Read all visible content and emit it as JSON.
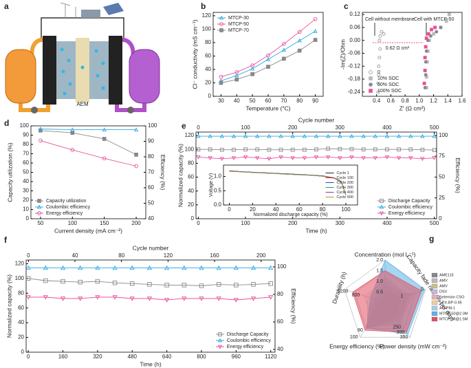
{
  "diagram": {
    "label": "a",
    "membrane": "AEM"
  },
  "chart_data": [
    {
      "label": "b",
      "type": "line",
      "xlabel": "Temperature (°C)",
      "ylabel": "Cl⁻ conductivity (mS cm⁻¹)",
      "x": [
        30,
        40,
        50,
        60,
        70,
        80,
        90
      ],
      "xlim": [
        25,
        95
      ],
      "xticks": [
        30,
        40,
        50,
        60,
        70,
        80,
        90
      ],
      "ylim": [
        0,
        125
      ],
      "yticks": [
        0,
        20,
        40,
        60,
        80,
        100,
        120
      ],
      "legend": "upper left",
      "series": [
        {
          "name": "MTCP-30",
          "color": "#2ea8e0",
          "marker": "triangle",
          "filled": false,
          "values": [
            23,
            31,
            41,
            55,
            69,
            83,
            97
          ]
        },
        {
          "name": "MTCP-50",
          "color": "#e8509a",
          "marker": "circle",
          "filled": false,
          "values": [
            29,
            36,
            46,
            61,
            78,
            96,
            115
          ]
        },
        {
          "name": "MTCP-70",
          "color": "#888888",
          "marker": "square",
          "filled": true,
          "values": [
            20,
            25,
            33,
            44,
            56,
            68,
            84
          ]
        }
      ]
    },
    {
      "label": "c",
      "type": "scatter",
      "xlabel": "Z' (Ω cm²)",
      "ylabel": "-Im(Z)/Ohm",
      "xlim": [
        0.2,
        1.6
      ],
      "xticks": [
        0.4,
        0.6,
        0.8,
        {
          "value": 1,
          "label": "1.0"
        },
        1.2,
        1.4,
        1.6
      ],
      "ylim": [
        -0.26,
        0.13
      ],
      "yticks": [
        0.12,
        0.06,
        {
          "value": 0,
          "label": "0.00"
        },
        -0.06,
        -0.12,
        -0.18,
        -0.24
      ],
      "legend": "lower left",
      "annotations": [
        "Cell without membrane",
        "Cell with MTCP-50",
        "0.62 Ω cm²"
      ],
      "series": [
        {
          "name": "0",
          "color": "#999999",
          "marker": "circle",
          "filled": false,
          "x": [
            0.5,
            0.47,
            0.45,
            0.44,
            0.45,
            0.44,
            0.43,
            0.43,
            0.42,
            0.42
          ],
          "values": [
            0.03,
            0.04,
            0.02,
            0,
            -0.04,
            -0.08,
            -0.12,
            -0.16,
            -0.2,
            -0.24
          ]
        },
        {
          "name": "10% SOC",
          "color": "#bbbbbb",
          "marker": "square",
          "filled": true,
          "x": [
            1.42,
            1.38,
            1.3,
            1.2,
            1.14,
            1.12,
            1.11,
            1.1,
            1.1
          ],
          "values": [
            0.12,
            0.09,
            0.06,
            0.03,
            0,
            -0.05,
            -0.1,
            -0.17,
            -0.22
          ]
        },
        {
          "name": "50% SOC",
          "color": "#888888",
          "marker": "circle",
          "filled": true,
          "x": [
            1.3,
            1.24,
            1.16,
            1.12,
            1.1,
            1.09,
            1.09,
            1.08
          ],
          "values": [
            0.06,
            0.04,
            0.02,
            0,
            -0.05,
            -0.1,
            -0.16,
            -0.22
          ]
        },
        {
          "name": "100% SOC",
          "color": "#e8509a",
          "marker": "square",
          "filled": true,
          "x": [
            1.22,
            1.17,
            1.13,
            1.1,
            1.09,
            1.08,
            1.08,
            1.07
          ],
          "values": [
            0.06,
            0.05,
            0.03,
            0.01,
            -0.03,
            -0.08,
            -0.14,
            -0.2
          ]
        }
      ]
    },
    {
      "label": "d",
      "type": "line",
      "xlabel": "Current density (mA cm⁻²)",
      "ylabel": "Capacity utilization (%)",
      "y2label": "Efficiency (%)",
      "x": [
        50,
        100,
        150,
        200
      ],
      "xlim": [
        35,
        215
      ],
      "xticks": [
        50,
        100,
        150,
        200
      ],
      "ylim": [
        0,
        100
      ],
      "yticks": [
        0,
        10,
        20,
        30,
        40,
        50,
        60,
        70,
        80,
        90,
        100
      ],
      "y2lim": [
        40,
        100
      ],
      "y2ticks": [
        40,
        50,
        60,
        70,
        80,
        90,
        100
      ],
      "legend": "lower left",
      "series": [
        {
          "name": "Capacity utilization",
          "color": "#888888",
          "marker": "square",
          "filled": true,
          "values": [
            95,
            92.5,
            86,
            69
          ]
        },
        {
          "name": "Coulombic efficiency",
          "color": "#2ea8e0",
          "marker": "triangle",
          "filled": false,
          "axis": "y2",
          "values": [
            98,
            97.5,
            97.5,
            97.5
          ]
        },
        {
          "name": "Energy efficiency",
          "color": "#e8509a",
          "marker": "circle",
          "filled": false,
          "axis": "y2",
          "values": [
            90.5,
            84.5,
            79,
            74
          ]
        }
      ]
    },
    {
      "label": "e",
      "type": "line",
      "xlabel": "Time (h)",
      "ylabel": "Normalized capacity (%)",
      "y2label": "Efficiency (%)",
      "x2label": "Cycle number",
      "x": [
        0,
        25,
        50,
        75,
        100,
        125,
        150,
        175,
        200,
        225,
        250,
        275,
        300,
        325,
        350,
        375,
        400,
        425,
        450,
        475,
        500
      ],
      "xlim": [
        -5,
        505
      ],
      "xticks": [
        0,
        100,
        200,
        300,
        400,
        500
      ],
      "x2lim": [
        -5,
        505
      ],
      "x2ticks": [
        0,
        100,
        200,
        300,
        400,
        500
      ],
      "ylim": [
        0,
        125
      ],
      "yticks": [
        0,
        20,
        40,
        60,
        80,
        100,
        120
      ],
      "y2lim": [
        0,
        104
      ],
      "y2ticks": [
        0,
        25,
        50,
        75,
        100
      ],
      "legend": "lower right",
      "series": [
        {
          "name": "Discharge Capacity",
          "color": "#888888",
          "marker": "square",
          "filled": false,
          "values": [
            100,
            100,
            99.5,
            99.5,
            100,
            100,
            99.5,
            99.5,
            99.5,
            99.5,
            100,
            101,
            100.5,
            100.5,
            100,
            100,
            100,
            100,
            100,
            99.5,
            99
          ]
        },
        {
          "name": "Coulombic efficiency",
          "color": "#2ea8e0",
          "marker": "triangle",
          "filled": false,
          "axis": "y2",
          "values": [
            99,
            99,
            99,
            99,
            99,
            99,
            99,
            99,
            99,
            99,
            99,
            99,
            99,
            99,
            99,
            99,
            99,
            99,
            99,
            99,
            99
          ]
        },
        {
          "name": "Energy efficiency",
          "color": "#e8509a",
          "marker": "triangle-down",
          "filled": false,
          "axis": "y2",
          "values": [
            74,
            73,
            72,
            73,
            74,
            73,
            72,
            74,
            73,
            73,
            74,
            74,
            73,
            74,
            73,
            73,
            74,
            73,
            73,
            72,
            73
          ]
        }
      ]
    },
    {
      "type": "line",
      "xlabel": "Normalized discharge capacity (%)",
      "ylabel": "Voltage (V)",
      "x": [
        0,
        10,
        20,
        30,
        40,
        50,
        60,
        70,
        80,
        90,
        96,
        100
      ],
      "xlim": [
        -5,
        110
      ],
      "xticks": [
        0,
        20,
        40,
        60,
        80,
        100
      ],
      "ylim": [
        0,
        1.4
      ],
      "yticks": [
        {
          "value": 0,
          "label": "0.0"
        },
        0.5,
        {
          "value": 1,
          "label": "1.0"
        }
      ],
      "legend": "right",
      "series": [
        {
          "name": "Cycle 1",
          "color": "#222222",
          "values": [
            1.2,
            1.17,
            1.15,
            1.13,
            1.11,
            1.09,
            1.07,
            1.05,
            1.02,
            0.95,
            0.82,
            0.35
          ]
        },
        {
          "name": "Cycle 100",
          "color": "#e02020",
          "values": [
            1.2,
            1.17,
            1.15,
            1.13,
            1.11,
            1.09,
            1.07,
            1.05,
            1.02,
            0.95,
            0.83,
            0.36
          ]
        },
        {
          "name": "Cycle 200",
          "color": "#2040e0",
          "values": [
            1.19,
            1.17,
            1.15,
            1.13,
            1.11,
            1.09,
            1.07,
            1.05,
            1.02,
            0.95,
            0.82,
            0.35
          ]
        },
        {
          "name": "Cycle 300",
          "color": "#20a040",
          "values": [
            1.19,
            1.16,
            1.14,
            1.12,
            1.1,
            1.08,
            1.06,
            1.04,
            1.01,
            0.94,
            0.81,
            0.35
          ]
        },
        {
          "name": "Cycle 400",
          "color": "#9030c0",
          "values": [
            1.19,
            1.16,
            1.14,
            1.12,
            1.1,
            1.08,
            1.06,
            1.04,
            1.01,
            0.94,
            0.8,
            0.36
          ]
        },
        {
          "name": "Cycle 500",
          "color": "#a0a020",
          "values": [
            1.18,
            1.16,
            1.14,
            1.12,
            1.1,
            1.08,
            1.06,
            1.04,
            1.01,
            0.94,
            0.8,
            0.35
          ]
        }
      ]
    },
    {
      "label": "f",
      "type": "line",
      "xlabel": "Time (h)",
      "ylabel": "Normalized capacity (%)",
      "y2label": "Efficiency (%)",
      "x2label": "Cycle number",
      "x": [
        0,
        80,
        160,
        240,
        320,
        400,
        480,
        560,
        640,
        720,
        800,
        880,
        960,
        1040,
        1120
      ],
      "xlim": [
        -10,
        1140
      ],
      "xticks": [
        0,
        160,
        320,
        480,
        640,
        800,
        960,
        1120
      ],
      "x2lim": [
        -2,
        212
      ],
      "x2ticks": [
        0,
        40,
        80,
        120,
        160,
        200
      ],
      "ylim": [
        0,
        125
      ],
      "yticks": [
        0,
        20,
        40,
        60,
        80,
        100,
        120
      ],
      "y2lim": [
        38,
        105
      ],
      "y2ticks": [
        40,
        60,
        80,
        100
      ],
      "legend": "lower right",
      "series": [
        {
          "name": "Discharge Capacity",
          "color": "#888888",
          "marker": "square",
          "filled": false,
          "values": [
            100,
            97,
            96,
            95,
            96,
            94,
            93,
            92,
            91,
            91,
            90,
            92,
            91,
            92,
            93
          ]
        },
        {
          "name": "Coulombic efficiency",
          "color": "#2ea8e0",
          "marker": "triangle",
          "filled": false,
          "axis": "y2",
          "values": [
            99.3,
            99.3,
            99.2,
            99.3,
            99.3,
            99.2,
            99.3,
            99.3,
            99.2,
            99.3,
            99.3,
            99.2,
            99.3,
            99.3,
            99.3
          ]
        },
        {
          "name": "Energy efficiency",
          "color": "#e8509a",
          "marker": "triangle-down",
          "filled": false,
          "axis": "y2",
          "values": [
            78,
            78,
            77,
            77,
            78,
            78,
            77,
            77,
            76,
            77,
            77,
            77,
            76,
            77,
            78
          ]
        }
      ]
    },
    {
      "label": "g",
      "type": "radar",
      "legend": "right",
      "axes": [
        {
          "name": "Concentration (mol L⁻¹)",
          "lim": [
            0,
            2
          ],
          "ticks": [
            0.5,
            {
              "value": 1,
              "label": "1.0"
            },
            1.5,
            {
              "value": 2,
              "label": "2.0"
            }
          ]
        },
        {
          "name": "Capacity fade rate (% per day)",
          "lim": [
            2,
            0
          ],
          "ticks": [
            1,
            0
          ]
        },
        {
          "name": "Power density (mW cm⁻²)",
          "lim": [
            0,
            350
          ],
          "ticks": [
            250,
            300,
            350
          ]
        },
        {
          "name": "Energy efficiency (%)",
          "lim": [
            0,
            100
          ],
          "ticks": [
            80,
            100
          ]
        },
        {
          "name": "Durability (h)",
          "lim": [
            0,
            1400
          ],
          "ticks": [
            800,
            1200
          ]
        }
      ],
      "series": [
        {
          "name": "AME115",
          "color": "#888888",
          "values": [
            0.5,
            1.2,
            150,
            70,
            200
          ]
        },
        {
          "name": "AMV",
          "color": "#bbbbbb",
          "values": [
            0.6,
            1.0,
            120,
            75,
            150
          ]
        },
        {
          "name": "AMV",
          "color": "#c9c08a",
          "values": [
            0.8,
            0.8,
            180,
            72,
            300
          ]
        },
        {
          "name": "DSV",
          "color": "#c8b8e0",
          "values": [
            1.0,
            1.4,
            100,
            78,
            400
          ]
        },
        {
          "name": "Selemion CSO",
          "color": "#e8b0b0",
          "values": [
            0.5,
            0.6,
            200,
            74,
            250
          ]
        },
        {
          "name": "SPX-BP-0.95",
          "color": "#e8d0a0",
          "values": [
            1.0,
            1.0,
            150,
            65,
            500
          ]
        },
        {
          "name": "AO-PM-1",
          "color": "#a8d0e8",
          "values": [
            1.2,
            0.9,
            220,
            70,
            600
          ]
        },
        {
          "name": "MTCP-50@2.0M",
          "color": "#5ab4e8",
          "values": [
            2.0,
            0.05,
            320,
            74,
            500
          ]
        },
        {
          "name": "MTCP-50@1.5M",
          "color": "#e05060",
          "values": [
            1.5,
            0.2,
            300,
            80,
            1120
          ]
        }
      ]
    }
  ]
}
